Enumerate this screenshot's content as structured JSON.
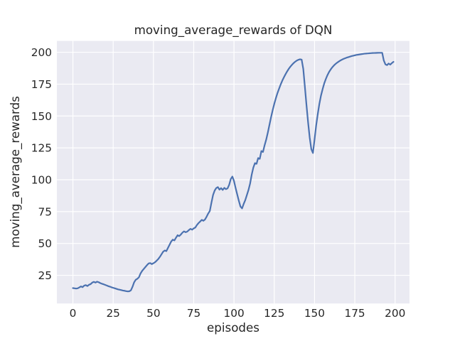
{
  "chart_data": {
    "type": "line",
    "title": "moving_average_rewards of DQN",
    "xlabel": "episodes",
    "ylabel": "moving_average_rewards",
    "x_ticks": [
      0,
      25,
      50,
      75,
      100,
      125,
      150,
      175,
      200
    ],
    "y_ticks": [
      25,
      50,
      75,
      100,
      125,
      150,
      175,
      200
    ],
    "xlim": [
      -9.95,
      208.95
    ],
    "ylim": [
      2.9,
      208.9
    ],
    "grid": true,
    "legend_position": "none",
    "figure_bg": "#FFFFFF",
    "plot_bg": "#EAEAF2",
    "grid_color": "#FFFFFF",
    "line_color": "#4C72B0",
    "text_color": "#262626",
    "series": [
      {
        "name": "moving_average_rewards",
        "x_start": 0,
        "x_step": 1,
        "values": [
          15.0,
          14.8,
          14.6,
          14.8,
          15.5,
          16.3,
          15.7,
          16.9,
          17.3,
          16.6,
          17.6,
          18.1,
          19.3,
          19.9,
          19.3,
          20.0,
          19.6,
          18.9,
          18.4,
          18.0,
          17.5,
          17.0,
          16.5,
          16.1,
          15.6,
          15.2,
          14.8,
          14.4,
          14.0,
          13.7,
          13.4,
          13.1,
          12.9,
          12.6,
          12.4,
          12.5,
          13.2,
          16.0,
          19.5,
          21.5,
          22.3,
          23.5,
          26.5,
          28.5,
          30.0,
          31.5,
          33.0,
          34.3,
          34.6,
          33.8,
          34.5,
          35.3,
          36.5,
          37.8,
          39.5,
          41.5,
          43.5,
          44.5,
          44.0,
          46.5,
          49.0,
          51.5,
          53.0,
          52.4,
          54.5,
          56.5,
          55.8,
          57.0,
          58.5,
          59.5,
          58.8,
          59.3,
          60.5,
          61.5,
          60.8,
          61.8,
          62.5,
          64.5,
          66.0,
          67.2,
          68.5,
          67.8,
          68.8,
          71.0,
          73.5,
          75.5,
          82.0,
          88.0,
          91.5,
          93.5,
          94.2,
          92.2,
          93.4,
          92.0,
          93.6,
          92.6,
          93.2,
          96.0,
          100.5,
          102.5,
          99.0,
          93.5,
          88.5,
          83.5,
          79.0,
          77.5,
          81.0,
          84.0,
          88.0,
          92.0,
          97.0,
          104.0,
          109.5,
          113.0,
          112.5,
          117.0,
          116.4,
          122.5,
          121.8,
          127.0,
          131.5,
          137.0,
          143.0,
          149.0,
          154.5,
          159.5,
          164.0,
          168.0,
          171.5,
          174.8,
          177.8,
          180.4,
          182.8,
          185.0,
          187.0,
          188.7,
          190.2,
          191.5,
          192.6,
          193.5,
          194.1,
          194.5,
          194.2,
          187.0,
          173.0,
          158.5,
          145.0,
          133.0,
          124.0,
          121.0,
          131.5,
          142.5,
          151.5,
          159.5,
          166.0,
          171.0,
          175.5,
          179.0,
          182.0,
          184.5,
          186.5,
          188.2,
          189.6,
          190.8,
          191.8,
          192.7,
          193.5,
          194.2,
          194.8,
          195.3,
          195.8,
          196.2,
          196.6,
          197.0,
          197.3,
          197.6,
          197.9,
          198.1,
          198.3,
          198.5,
          198.7,
          198.9,
          199.0,
          199.1,
          199.2,
          199.3,
          199.4,
          199.45,
          199.5,
          199.55,
          199.6,
          199.6,
          199.6,
          193.5,
          190.5,
          189.9,
          191.2,
          190.3,
          191.5,
          192.5
        ]
      }
    ]
  }
}
